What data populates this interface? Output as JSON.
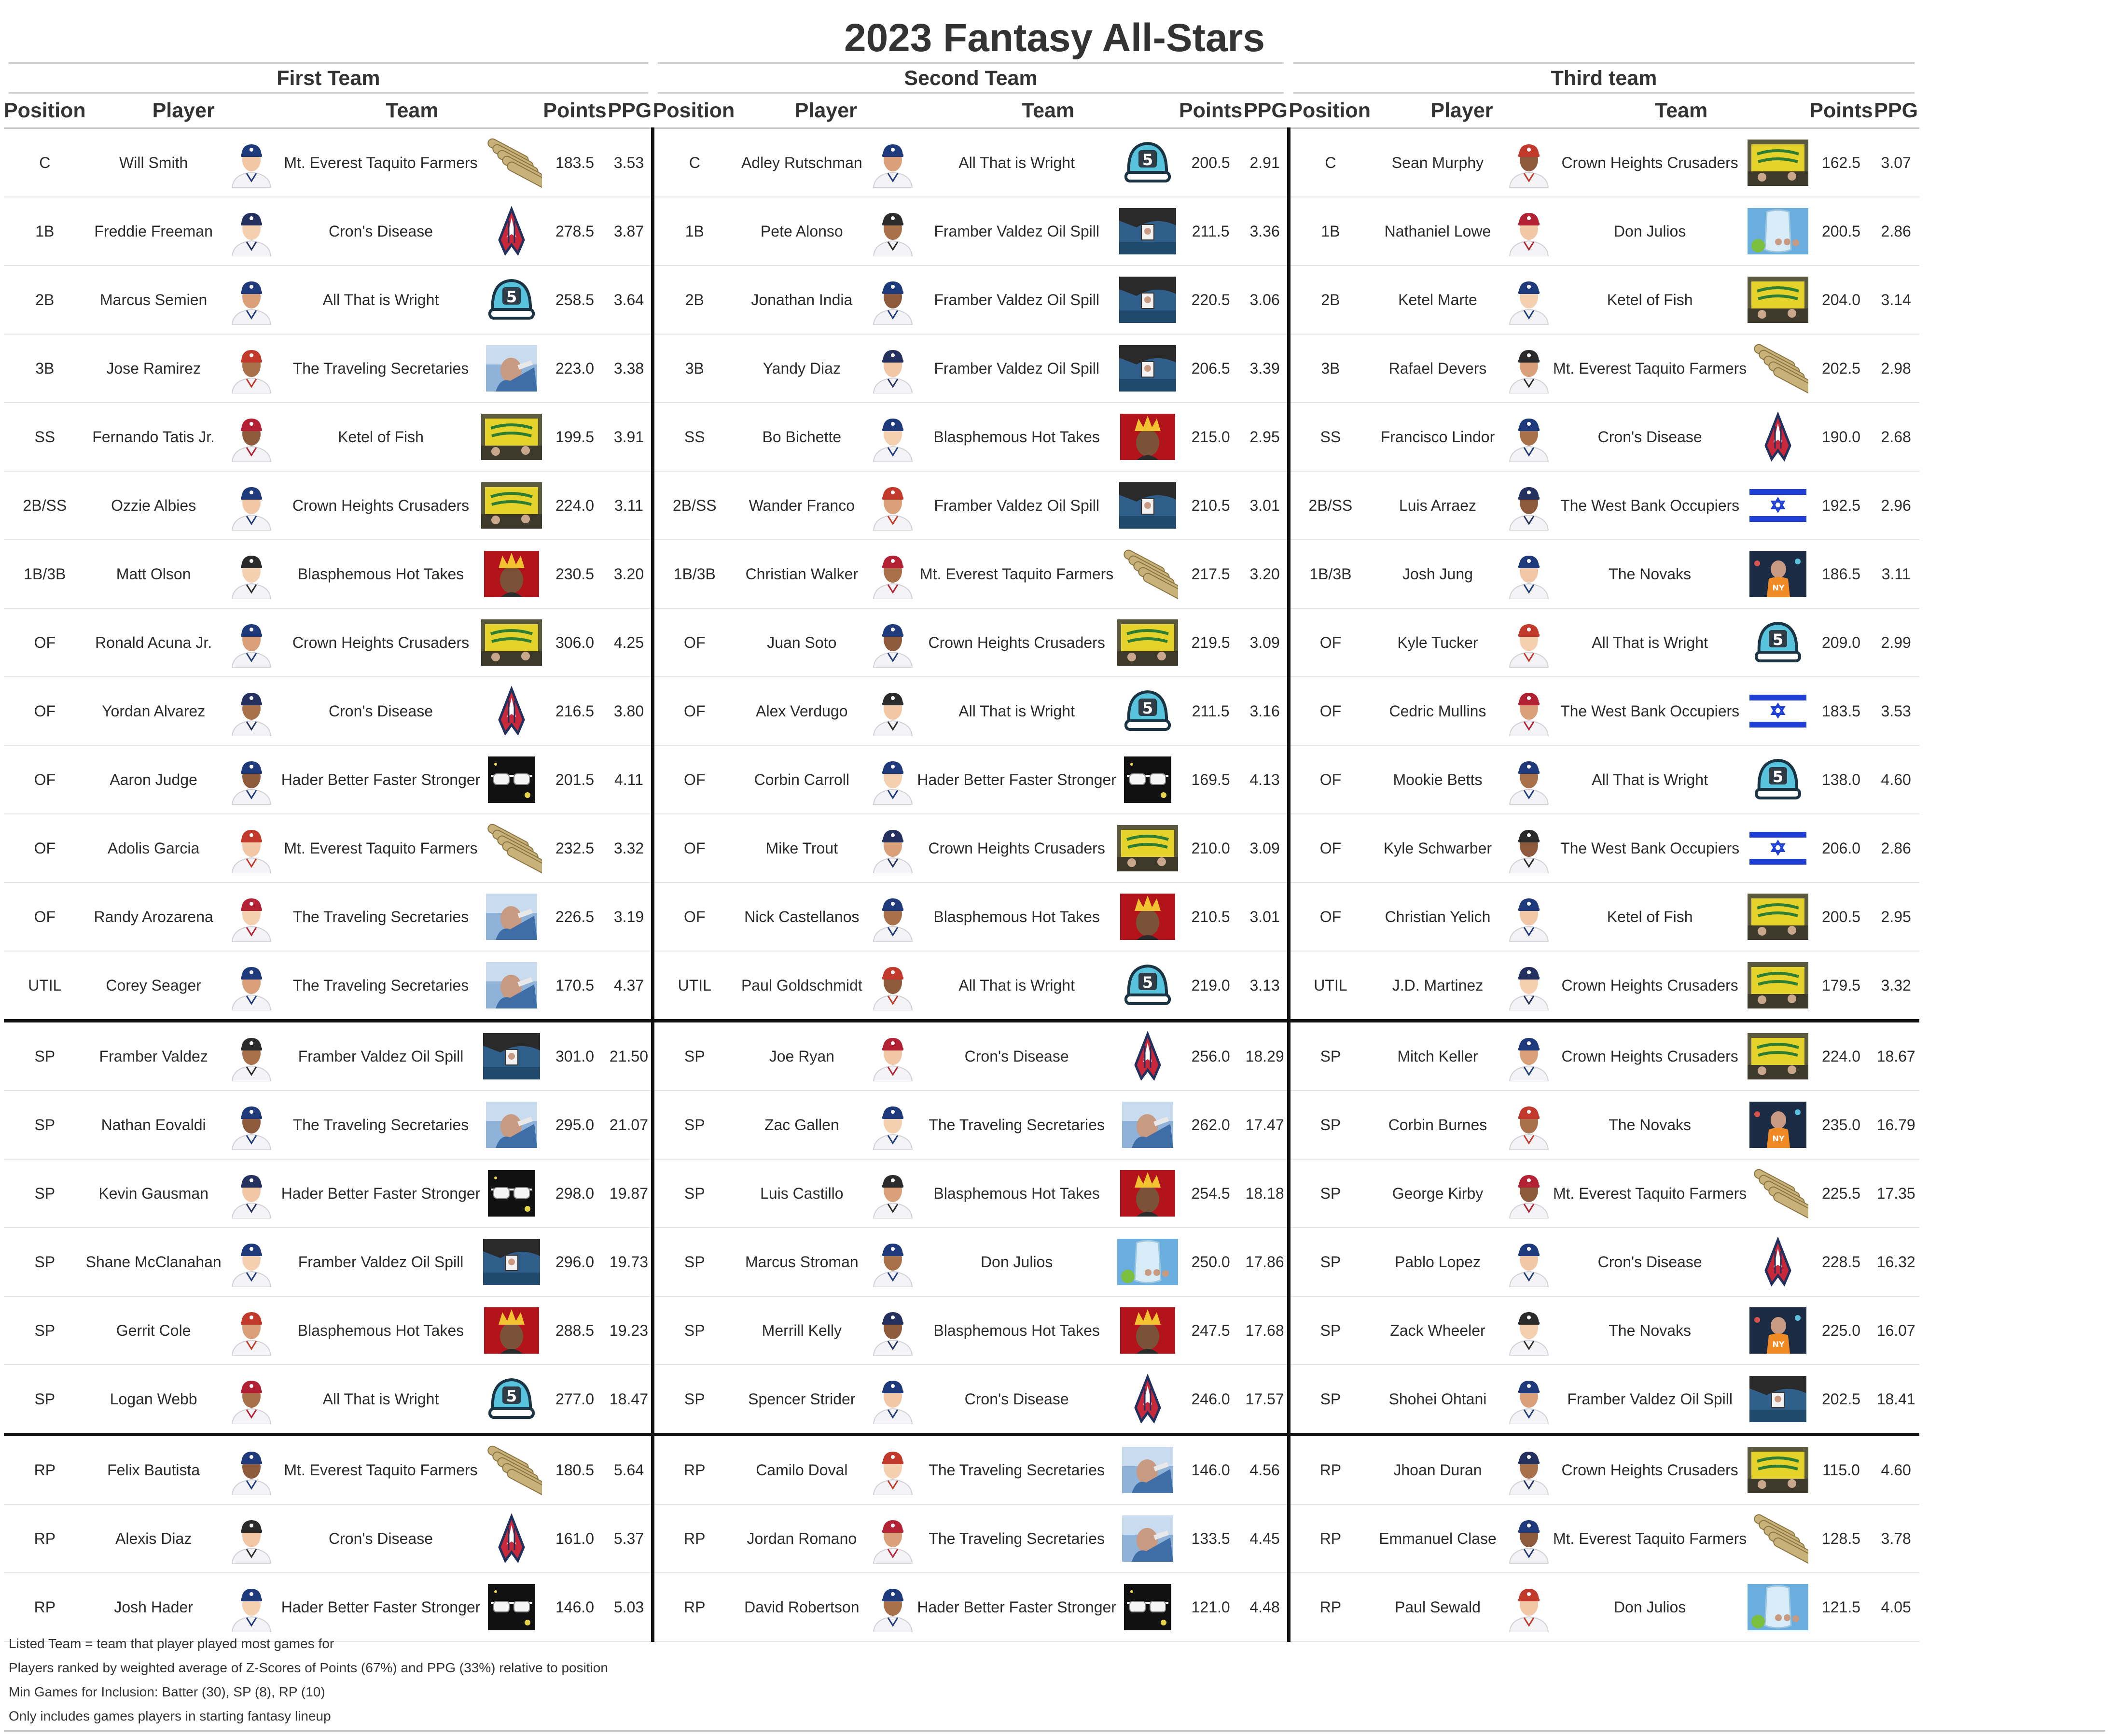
{
  "title": "2023 Fantasy All-Stars",
  "column_headers": [
    "Position",
    "Player",
    "Team",
    "Points",
    "PPG"
  ],
  "groups": [
    {
      "name": "First Team",
      "rows": [
        {
          "pos": "C",
          "player": "Will Smith",
          "team": "Mt. Everest Taquito Farmers",
          "points": "183.5",
          "ppg": "3.53"
        },
        {
          "pos": "1B",
          "player": "Freddie Freeman",
          "team": "Cron's Disease",
          "points": "278.5",
          "ppg": "3.87"
        },
        {
          "pos": "2B",
          "player": "Marcus Semien",
          "team": "All That is Wright",
          "points": "258.5",
          "ppg": "3.64"
        },
        {
          "pos": "3B",
          "player": "Jose Ramirez",
          "team": "The Traveling Secretaries",
          "points": "223.0",
          "ppg": "3.38"
        },
        {
          "pos": "SS",
          "player": "Fernando Tatis Jr.",
          "team": "Ketel of Fish",
          "points": "199.5",
          "ppg": "3.91"
        },
        {
          "pos": "2B/SS",
          "player": "Ozzie Albies",
          "team": "Crown Heights Crusaders",
          "points": "224.0",
          "ppg": "3.11"
        },
        {
          "pos": "1B/3B",
          "player": "Matt Olson",
          "team": "Blasphemous Hot Takes",
          "points": "230.5",
          "ppg": "3.20"
        },
        {
          "pos": "OF",
          "player": "Ronald Acuna Jr.",
          "team": "Crown Heights Crusaders",
          "points": "306.0",
          "ppg": "4.25"
        },
        {
          "pos": "OF",
          "player": "Yordan Alvarez",
          "team": "Cron's Disease",
          "points": "216.5",
          "ppg": "3.80"
        },
        {
          "pos": "OF",
          "player": "Aaron Judge",
          "team": "Hader Better Faster Stronger",
          "points": "201.5",
          "ppg": "4.11"
        },
        {
          "pos": "OF",
          "player": "Adolis Garcia",
          "team": "Mt. Everest Taquito Farmers",
          "points": "232.5",
          "ppg": "3.32"
        },
        {
          "pos": "OF",
          "player": "Randy Arozarena",
          "team": "The Traveling Secretaries",
          "points": "226.5",
          "ppg": "3.19"
        },
        {
          "pos": "UTIL",
          "player": "Corey Seager",
          "team": "The Traveling Secretaries",
          "points": "170.5",
          "ppg": "4.37"
        },
        {
          "pos": "SP",
          "player": "Framber Valdez",
          "team": "Framber Valdez Oil Spill",
          "points": "301.0",
          "ppg": "21.50"
        },
        {
          "pos": "SP",
          "player": "Nathan Eovaldi",
          "team": "The Traveling Secretaries",
          "points": "295.0",
          "ppg": "21.07"
        },
        {
          "pos": "SP",
          "player": "Kevin Gausman",
          "team": "Hader Better Faster Stronger",
          "points": "298.0",
          "ppg": "19.87"
        },
        {
          "pos": "SP",
          "player": "Shane McClanahan",
          "team": "Framber Valdez Oil Spill",
          "points": "296.0",
          "ppg": "19.73"
        },
        {
          "pos": "SP",
          "player": "Gerrit Cole",
          "team": "Blasphemous Hot Takes",
          "points": "288.5",
          "ppg": "19.23"
        },
        {
          "pos": "SP",
          "player": "Logan Webb",
          "team": "All That is Wright",
          "points": "277.0",
          "ppg": "18.47"
        },
        {
          "pos": "RP",
          "player": "Felix Bautista",
          "team": "Mt. Everest Taquito Farmers",
          "points": "180.5",
          "ppg": "5.64"
        },
        {
          "pos": "RP",
          "player": "Alexis Diaz",
          "team": "Cron's Disease",
          "points": "161.0",
          "ppg": "5.37"
        },
        {
          "pos": "RP",
          "player": "Josh Hader",
          "team": "Hader Better Faster Stronger",
          "points": "146.0",
          "ppg": "5.03"
        }
      ]
    },
    {
      "name": "Second Team",
      "rows": [
        {
          "pos": "C",
          "player": "Adley Rutschman",
          "team": "All That is Wright",
          "points": "200.5",
          "ppg": "2.91"
        },
        {
          "pos": "1B",
          "player": "Pete Alonso",
          "team": "Framber Valdez Oil Spill",
          "points": "211.5",
          "ppg": "3.36"
        },
        {
          "pos": "2B",
          "player": "Jonathan India",
          "team": "Framber Valdez Oil Spill",
          "points": "220.5",
          "ppg": "3.06"
        },
        {
          "pos": "3B",
          "player": "Yandy Diaz",
          "team": "Framber Valdez Oil Spill",
          "points": "206.5",
          "ppg": "3.39"
        },
        {
          "pos": "SS",
          "player": "Bo Bichette",
          "team": "Blasphemous Hot Takes",
          "points": "215.0",
          "ppg": "2.95"
        },
        {
          "pos": "2B/SS",
          "player": "Wander Franco",
          "team": "Framber Valdez Oil Spill",
          "points": "210.5",
          "ppg": "3.01"
        },
        {
          "pos": "1B/3B",
          "player": "Christian Walker",
          "team": "Mt. Everest Taquito Farmers",
          "points": "217.5",
          "ppg": "3.20"
        },
        {
          "pos": "OF",
          "player": "Juan Soto",
          "team": "Crown Heights Crusaders",
          "points": "219.5",
          "ppg": "3.09"
        },
        {
          "pos": "OF",
          "player": "Alex Verdugo",
          "team": "All That is Wright",
          "points": "211.5",
          "ppg": "3.16"
        },
        {
          "pos": "OF",
          "player": "Corbin Carroll",
          "team": "Hader Better Faster Stronger",
          "points": "169.5",
          "ppg": "4.13"
        },
        {
          "pos": "OF",
          "player": "Mike Trout",
          "team": "Crown Heights Crusaders",
          "points": "210.0",
          "ppg": "3.09"
        },
        {
          "pos": "OF",
          "player": "Nick Castellanos",
          "team": "Blasphemous Hot Takes",
          "points": "210.5",
          "ppg": "3.01"
        },
        {
          "pos": "UTIL",
          "player": "Paul Goldschmidt",
          "team": "All That is Wright",
          "points": "219.0",
          "ppg": "3.13"
        },
        {
          "pos": "SP",
          "player": "Joe Ryan",
          "team": "Cron's Disease",
          "points": "256.0",
          "ppg": "18.29"
        },
        {
          "pos": "SP",
          "player": "Zac Gallen",
          "team": "The Traveling Secretaries",
          "points": "262.0",
          "ppg": "17.47"
        },
        {
          "pos": "SP",
          "player": "Luis Castillo",
          "team": "Blasphemous Hot Takes",
          "points": "254.5",
          "ppg": "18.18"
        },
        {
          "pos": "SP",
          "player": "Marcus Stroman",
          "team": "Don Julios",
          "points": "250.0",
          "ppg": "17.86"
        },
        {
          "pos": "SP",
          "player": "Merrill Kelly",
          "team": "Blasphemous Hot Takes",
          "points": "247.5",
          "ppg": "17.68"
        },
        {
          "pos": "SP",
          "player": "Spencer Strider",
          "team": "Cron's Disease",
          "points": "246.0",
          "ppg": "17.57"
        },
        {
          "pos": "RP",
          "player": "Camilo Doval",
          "team": "The Traveling Secretaries",
          "points": "146.0",
          "ppg": "4.56"
        },
        {
          "pos": "RP",
          "player": "Jordan Romano",
          "team": "The Traveling Secretaries",
          "points": "133.5",
          "ppg": "4.45"
        },
        {
          "pos": "RP",
          "player": "David Robertson",
          "team": "Hader Better Faster Stronger",
          "points": "121.0",
          "ppg": "4.48"
        }
      ]
    },
    {
      "name": "Third team",
      "rows": [
        {
          "pos": "C",
          "player": "Sean Murphy",
          "team": "Crown Heights Crusaders",
          "points": "162.5",
          "ppg": "3.07"
        },
        {
          "pos": "1B",
          "player": "Nathaniel Lowe",
          "team": "Don Julios",
          "points": "200.5",
          "ppg": "2.86"
        },
        {
          "pos": "2B",
          "player": "Ketel Marte",
          "team": "Ketel of Fish",
          "points": "204.0",
          "ppg": "3.14"
        },
        {
          "pos": "3B",
          "player": "Rafael Devers",
          "team": "Mt. Everest Taquito Farmers",
          "points": "202.5",
          "ppg": "2.98"
        },
        {
          "pos": "SS",
          "player": "Francisco Lindor",
          "team": "Cron's Disease",
          "points": "190.0",
          "ppg": "2.68"
        },
        {
          "pos": "2B/SS",
          "player": "Luis Arraez",
          "team": "The West Bank Occupiers",
          "points": "192.5",
          "ppg": "2.96"
        },
        {
          "pos": "1B/3B",
          "player": "Josh Jung",
          "team": "The Novaks",
          "points": "186.5",
          "ppg": "3.11"
        },
        {
          "pos": "OF",
          "player": "Kyle Tucker",
          "team": "All That is Wright",
          "points": "209.0",
          "ppg": "2.99"
        },
        {
          "pos": "OF",
          "player": "Cedric Mullins",
          "team": "The West Bank Occupiers",
          "points": "183.5",
          "ppg": "3.53"
        },
        {
          "pos": "OF",
          "player": "Mookie Betts",
          "team": "All That is Wright",
          "points": "138.0",
          "ppg": "4.60"
        },
        {
          "pos": "OF",
          "player": "Kyle Schwarber",
          "team": "The West Bank Occupiers",
          "points": "206.0",
          "ppg": "2.86"
        },
        {
          "pos": "OF",
          "player": "Christian Yelich",
          "team": "Ketel of Fish",
          "points": "200.5",
          "ppg": "2.95"
        },
        {
          "pos": "UTIL",
          "player": "J.D. Martinez",
          "team": "Crown Heights Crusaders",
          "points": "179.5",
          "ppg": "3.32"
        },
        {
          "pos": "SP",
          "player": "Mitch Keller",
          "team": "Crown Heights Crusaders",
          "points": "224.0",
          "ppg": "18.67"
        },
        {
          "pos": "SP",
          "player": "Corbin Burnes",
          "team": "The Novaks",
          "points": "235.0",
          "ppg": "16.79"
        },
        {
          "pos": "SP",
          "player": "George Kirby",
          "team": "Mt. Everest Taquito Farmers",
          "points": "225.5",
          "ppg": "17.35"
        },
        {
          "pos": "SP",
          "player": "Pablo Lopez",
          "team": "Cron's Disease",
          "points": "228.5",
          "ppg": "16.32"
        },
        {
          "pos": "SP",
          "player": "Zack Wheeler",
          "team": "The Novaks",
          "points": "225.0",
          "ppg": "16.07"
        },
        {
          "pos": "SP",
          "player": "Shohei Ohtani",
          "team": "Framber Valdez Oil Spill",
          "points": "202.5",
          "ppg": "18.41"
        },
        {
          "pos": "RP",
          "player": "Jhoan Duran",
          "team": "Crown Heights Crusaders",
          "points": "115.0",
          "ppg": "4.60"
        },
        {
          "pos": "RP",
          "player": "Emmanuel Clase",
          "team": "Mt. Everest Taquito Farmers",
          "points": "128.5",
          "ppg": "3.78"
        },
        {
          "pos": "RP",
          "player": "Paul Sewald",
          "team": "Don Julios",
          "points": "121.5",
          "ppg": "4.05"
        }
      ]
    }
  ],
  "team_logos": {
    "Mt. Everest Taquito Farmers": "taquito-stack-logo",
    "Cron's Disease": "rocket-emblem-logo",
    "All That is Wright": "number-5-cap-logo",
    "The Traveling Secretaries": "man-photo-blue-logo",
    "Ketel of Fish": "yellow-sign-photo-logo",
    "Crown Heights Crusaders": "yellow-sign-photo-logo",
    "Blasphemous Hot Takes": "crowned-portrait-red-logo",
    "Hader Better Faster Stronger": "sunglasses-dark-logo",
    "Framber Valdez Oil Spill": "oil-spill-photo-logo",
    "Don Julios": "bottle-photo-logo",
    "The West Bank Occupiers": "israel-flag-logo",
    "The Novaks": "basketball-photo-logo"
  },
  "colors": {
    "heavy_rule": "#111111",
    "light_rule": "#c8c8c8",
    "israel_blue": "#1f3fd6",
    "rocket_red": "#c8283a",
    "rocket_navy": "#22305e",
    "cap_teal": "#58c3dc",
    "sign_yellow": "#e5d22a"
  },
  "footnotes": [
    "Listed Team = team that player played most games for",
    "Players ranked by weighted average of Z-Scores of Points (67%) and PPG (33%) relative to position",
    "Min Games for Inclusion: Batter (30), SP (8), RP (10)",
    "Only includes games players in starting fantasy lineup"
  ]
}
